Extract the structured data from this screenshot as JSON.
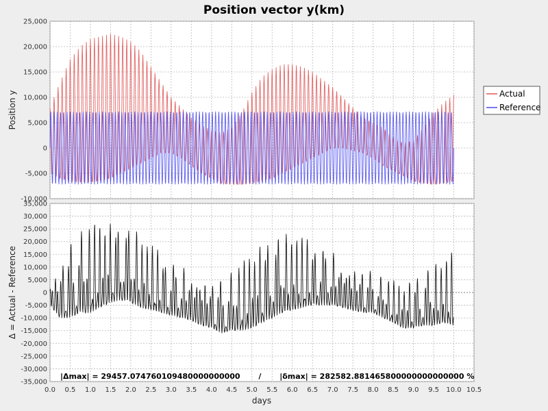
{
  "chart_data": {
    "type": "line",
    "title": "Position vector y(km)",
    "xlabel": "days",
    "xlim": [
      0.0,
      10.5
    ],
    "xticks": [
      "0.0",
      "0.5",
      "1.0",
      "1.5",
      "2.0",
      "2.5",
      "3.0",
      "3.5",
      "4.0",
      "4.5",
      "5.0",
      "5.5",
      "6.0",
      "6.5",
      "7.0",
      "7.5",
      "8.0",
      "8.5",
      "9.0",
      "9.5",
      "10.0",
      "10.5"
    ],
    "legend_position": "right",
    "grid": true,
    "panels": [
      {
        "ylabel": "Position y",
        "ylim": [
          -10000,
          25000
        ],
        "yticks": [
          "25,000",
          "20,000",
          "15,000",
          "10,000",
          "5,000",
          "0",
          "-5,000",
          "-10,000"
        ],
        "series": [
          {
            "name": "Actual",
            "color": "#e05555",
            "period_days": 0.1,
            "x": [
              0.0,
              0.25,
              0.5,
              0.75,
              1.0,
              1.25,
              1.5,
              1.75,
              2.0,
              2.25,
              2.5,
              2.75,
              3.0,
              3.25,
              3.5,
              3.75,
              4.0,
              4.25,
              4.5,
              4.75,
              5.0,
              5.25,
              5.5,
              5.75,
              6.0,
              6.25,
              6.5,
              6.75,
              7.0,
              7.25,
              7.5,
              7.75,
              8.0,
              8.25,
              8.5,
              8.75,
              9.0,
              9.25,
              9.5,
              9.75,
              10.0
            ],
            "upper": [
              8000,
              13000,
              17500,
              20000,
              21500,
              22000,
              22500,
              22000,
              21000,
              19000,
              16000,
              13000,
              10000,
              8000,
              6000,
              4500,
              3500,
              3000,
              4000,
              7000,
              11000,
              14000,
              15500,
              16500,
              16500,
              16000,
              15000,
              13500,
              12000,
              10000,
              8000,
              6000,
              5000,
              4000,
              2000,
              1000,
              1500,
              4000,
              7000,
              9000,
              10500
            ],
            "lower": [
              -5000,
              -6000,
              -6500,
              -6800,
              -6800,
              -6500,
              -6000,
              -5000,
              -4000,
              -3000,
              -2000,
              -1000,
              -1000,
              -2000,
              -3500,
              -5000,
              -6000,
              -7000,
              -7200,
              -7200,
              -7000,
              -6500,
              -6000,
              -5000,
              -4000,
              -3000,
              -2000,
              -1000,
              0,
              0,
              -500,
              -1000,
              -2000,
              -3500,
              -4500,
              -5500,
              -6500,
              -7000,
              -7200,
              -7000,
              -6500
            ]
          },
          {
            "name": "Reference",
            "color": "#4a4aee",
            "period_days": 0.08,
            "amplitude": 7200,
            "offset": 0
          }
        ]
      },
      {
        "ylabel": "Δ = Actual - Reference",
        "ylim": [
          -35000,
          35000
        ],
        "yticks": [
          "35,000",
          "30,000",
          "25,000",
          "20,000",
          "15,000",
          "10,000",
          "5,000",
          "0",
          "-5,000",
          "-10,000",
          "-15,000",
          "-20,000",
          "-25,000",
          "-30,000",
          "-35,000"
        ],
        "series": [
          {
            "name": "Δ",
            "color": "#000000",
            "x": [
              0.0,
              0.25,
              0.5,
              0.75,
              1.0,
              1.25,
              1.5,
              1.75,
              2.0,
              2.25,
              2.5,
              2.75,
              3.0,
              3.25,
              3.5,
              3.75,
              4.0,
              4.25,
              4.5,
              4.75,
              5.0,
              5.25,
              5.5,
              5.75,
              6.0,
              6.25,
              6.5,
              6.75,
              7.0,
              7.25,
              7.5,
              7.75,
              8.0,
              8.25,
              8.5,
              8.75,
              9.0,
              9.25,
              9.5,
              9.75,
              10.0
            ],
            "upper": [
              5000,
              13000,
              20000,
              24000,
              27000,
              28000,
              29000,
              28000,
              26000,
              23000,
              19000,
              16000,
              12000,
              10000,
              9000,
              8000,
              6000,
              5000,
              8000,
              12000,
              17000,
              21000,
              22000,
              23000,
              23000,
              22000,
              20000,
              18000,
              16000,
              13000,
              12000,
              10000,
              8000,
              6000,
              5000,
              4000,
              6000,
              8000,
              11000,
              13000,
              17000
            ],
            "lower": [
              -5000,
              -10000,
              -10000,
              -8000,
              -8000,
              -6000,
              -4000,
              -3000,
              -4000,
              -6000,
              -7000,
              -8000,
              -9000,
              -10000,
              -11000,
              -13000,
              -14000,
              -16000,
              -15000,
              -15000,
              -14000,
              -12000,
              -10000,
              -8000,
              -7000,
              -6000,
              -5000,
              -5000,
              -5000,
              -6000,
              -7000,
              -8000,
              -8000,
              -10000,
              -12000,
              -14000,
              -14000,
              -13000,
              -13000,
              -12000,
              -13000
            ]
          }
        ]
      }
    ],
    "annotation": "|Δmax| = 29457.074760109480000000000       /       |δmax| = 282582.881465800000000000000 %"
  }
}
